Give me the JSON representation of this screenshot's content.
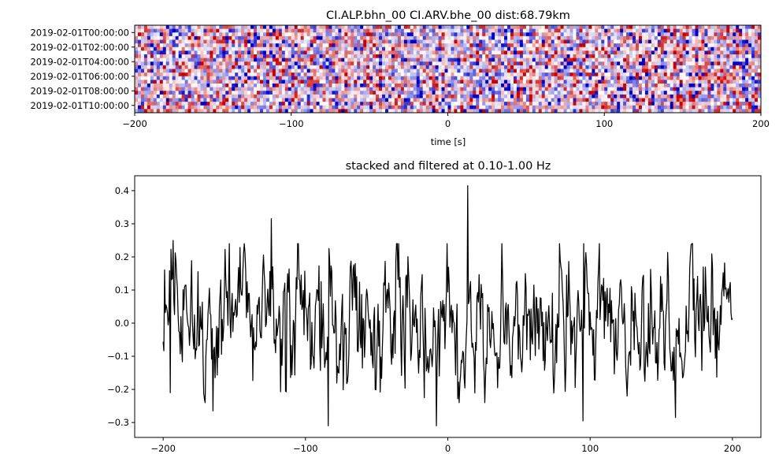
{
  "chart_data": [
    {
      "type": "heatmap",
      "title": "CI.ALP.bhn_00 CI.ARV.bhe_00  dist:68.79km",
      "xlabel": "time [s]",
      "ylabel": "",
      "xlim": [
        -200,
        200
      ],
      "xticks": [
        -200,
        -100,
        0,
        100,
        200
      ],
      "xtick_labels": [
        "−200",
        "−100",
        "0",
        "100",
        "200"
      ],
      "ytick_labels": [
        "2019-02-01T00:00:00",
        "2019-02-01T02:00:00",
        "2019-02-01T04:00:00",
        "2019-02-01T06:00:00",
        "2019-02-01T08:00:00",
        "2019-02-01T10:00:00"
      ],
      "colormap": "seismic",
      "colors": {
        "negative": "#0000cc",
        "zero": "#ffffff",
        "positive": "#cc0000"
      },
      "n_rows": 24,
      "value_range": [
        -1,
        1
      ]
    },
    {
      "type": "line",
      "title": "stacked and filtered at 0.10-1.00 Hz",
      "xlabel": "",
      "ylabel": "",
      "xlim": [
        -220,
        220
      ],
      "ylim": [
        -0.345,
        0.445
      ],
      "xticks": [
        -200,
        -100,
        0,
        100,
        200
      ],
      "xtick_labels": [
        "−200",
        "−100",
        "0",
        "100",
        "200"
      ],
      "yticks": [
        -0.3,
        -0.2,
        -0.1,
        0.0,
        0.1,
        0.2,
        0.3,
        0.4
      ],
      "ytick_labels": [
        "−0.3",
        "−0.2",
        "−0.1",
        "0.0",
        "0.1",
        "0.2",
        "0.3",
        "0.4"
      ],
      "line_color": "#000000",
      "x_range": [
        -200,
        200
      ],
      "approx_points": 801,
      "notable_points": [
        {
          "x": -198,
          "y": 0.055
        },
        {
          "x": -195,
          "y": -0.21
        },
        {
          "x": -193,
          "y": 0.25
        },
        {
          "x": -165,
          "y": -0.265
        },
        {
          "x": -124,
          "y": 0.315
        },
        {
          "x": -84,
          "y": -0.31
        },
        {
          "x": -8,
          "y": -0.31
        },
        {
          "x": 14,
          "y": 0.415
        },
        {
          "x": 95,
          "y": -0.295
        },
        {
          "x": 160,
          "y": -0.285
        },
        {
          "x": 200,
          "y": 0.015
        }
      ],
      "grid": false
    }
  ]
}
